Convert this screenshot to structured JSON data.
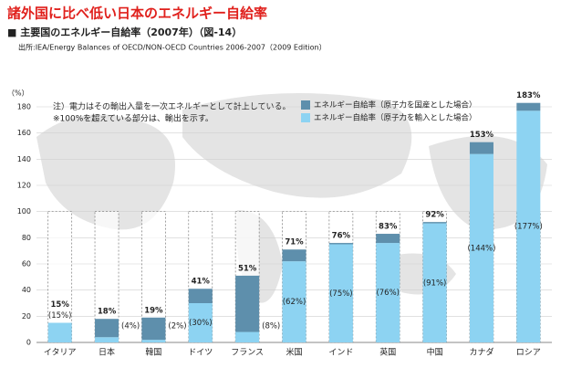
{
  "chart_data": {
    "type": "stacked_bar",
    "title": "諸外国に比べ低い日本のエネルギー自給率",
    "subtitle": "■ 主要国のエネルギー自給率（2007年）（図-14）",
    "source": "出所:IEA/Energy Balances of OECD/NON-OECD Countries 2006-2007（2009 Edition）",
    "y_axis_label": "（%）",
    "notes": [
      "注）電力はその輸出入量を一次エネルギーとして計上している。",
      "※100%を超えている部分は、輸出を示す。"
    ],
    "categories": [
      "イタリア",
      "日本",
      "韓国",
      "ドイツ",
      "フランス",
      "米国",
      "インド",
      "英国",
      "中国",
      "カナダ",
      "ロシア"
    ],
    "series": [
      {
        "name": "エネルギー自給率（原子力を輸入とした場合）",
        "color": "#8dd3f2",
        "values": [
          15,
          4,
          2,
          30,
          8,
          62,
          75,
          76,
          91,
          144,
          177
        ],
        "value_labels": [
          "(15%)",
          "(4%)",
          "(2%)",
          "(30%)",
          "(8%)",
          "(62%)",
          "(75%)",
          "(76%)",
          "(91%)",
          "(144%)",
          "(177%)"
        ]
      },
      {
        "name": "エネルギー自給率（原子力を国産とした場合）",
        "color": "#5e8fac",
        "values": [
          0,
          14,
          17,
          11,
          43,
          9,
          1,
          7,
          1,
          9,
          6
        ]
      }
    ],
    "totals": [
      15,
      18,
      19,
      41,
      51,
      71,
      76,
      83,
      92,
      153,
      183
    ],
    "total_labels": [
      "15%",
      "18%",
      "19%",
      "41%",
      "51%",
      "71%",
      "76%",
      "83%",
      "92%",
      "153%",
      "183%"
    ],
    "ylim": [
      0,
      180
    ],
    "yticks": [
      0,
      20,
      40,
      60,
      80,
      100,
      120,
      140,
      160,
      180
    ],
    "grid": true
  }
}
